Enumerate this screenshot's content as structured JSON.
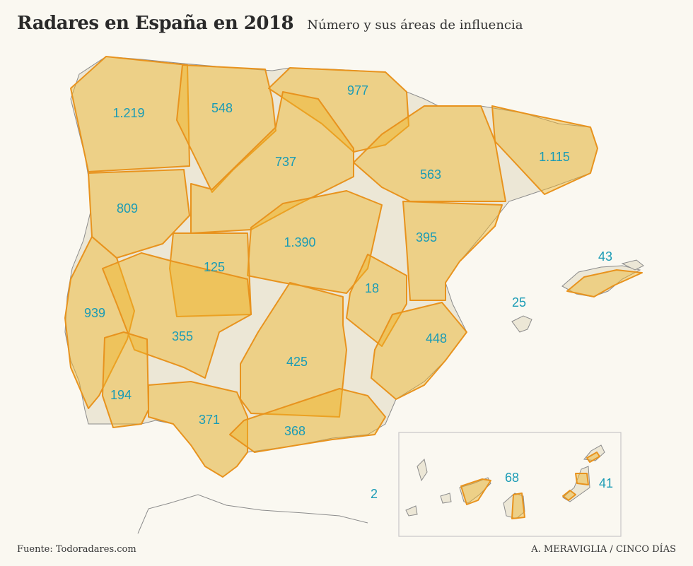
{
  "header": {
    "title": "Radares en España en 2018",
    "subtitle": "Número y sus áreas de influencia"
  },
  "regions": [
    {
      "id": "galicia",
      "value": "1.219"
    },
    {
      "id": "asturias-leon",
      "value": "548"
    },
    {
      "id": "pais-vasco-navarra",
      "value": "977"
    },
    {
      "id": "castilla-leon",
      "value": "737"
    },
    {
      "id": "aragon",
      "value": "563"
    },
    {
      "id": "cataluna",
      "value": "1.115"
    },
    {
      "id": "norte-portugal",
      "value": "809"
    },
    {
      "id": "madrid",
      "value": "1.390"
    },
    {
      "id": "salamanca-caceres",
      "value": "125"
    },
    {
      "id": "valencia-castellon",
      "value": "395"
    },
    {
      "id": "baleares",
      "value": "43"
    },
    {
      "id": "ibiza",
      "value": "25"
    },
    {
      "id": "portugal-centro",
      "value": "939"
    },
    {
      "id": "cuenca-albacete",
      "value": "18"
    },
    {
      "id": "extremadura",
      "value": "355"
    },
    {
      "id": "murcia-alicante",
      "value": "448"
    },
    {
      "id": "ciudad-real-jaen",
      "value": "425"
    },
    {
      "id": "algarve",
      "value": "194"
    },
    {
      "id": "sevilla-cadiz",
      "value": "371"
    },
    {
      "id": "malaga-granada",
      "value": "368"
    },
    {
      "id": "canarias-occidentales",
      "value": "68"
    },
    {
      "id": "canarias-orientales",
      "value": "41"
    },
    {
      "id": "ceuta-melilla",
      "value": "2"
    }
  ],
  "footer": {
    "source": "Fuente: Todoradares.com",
    "credit": "A. MERAVIGLIA / CINCO DÍAS"
  }
}
